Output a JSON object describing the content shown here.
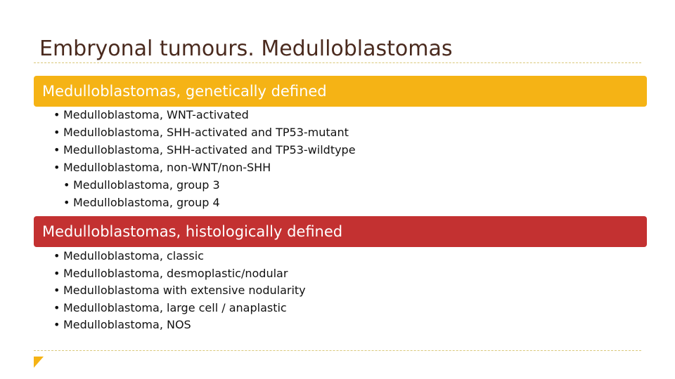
{
  "slide": {
    "title": "Embryonal tumours. Medulloblastomas"
  },
  "sections": {
    "genetic": {
      "heading": "Medulloblastomas, genetically defined",
      "color": "#f5b315",
      "items": [
        "Medulloblastoma, WNT-activated",
        "Medulloblastoma, SHH-activated and TP53-mutant",
        "Medulloblastoma, SHH-activated and TP53-wildtype",
        "Medulloblastoma, non-WNT/non-SHH"
      ],
      "subitems": [
        "Medulloblastoma, group 3",
        "Medulloblastoma, group 4"
      ]
    },
    "histologic": {
      "heading": "Medulloblastomas, histologically defined",
      "color": "#c33131",
      "items": [
        "Medulloblastoma, classic",
        "Medulloblastoma, desmoplastic/nodular",
        "Medulloblastoma with extensive nodularity",
        "Medulloblastoma, large cell / anaplastic",
        "Medulloblastoma, NOS"
      ]
    }
  },
  "bullet_glyph": "•",
  "icons": {
    "corner": "triangle-icon"
  }
}
